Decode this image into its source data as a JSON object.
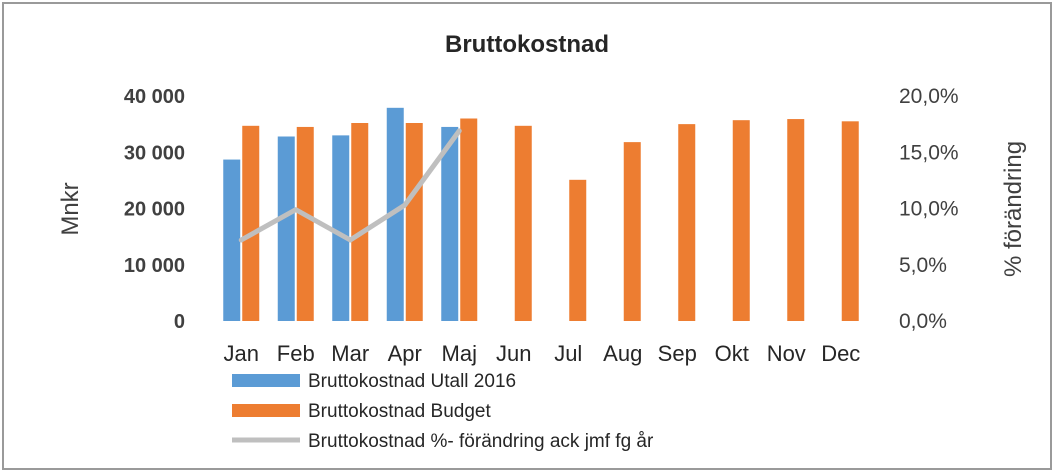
{
  "chart_data": {
    "type": "bar",
    "title": "Bruttokostnad",
    "ylabel": "Mnkr",
    "y2label": "% förändring",
    "categories": [
      "Jan",
      "Feb",
      "Mar",
      "Apr",
      "Maj",
      "Jun",
      "Jul",
      "Aug",
      "Sep",
      "Okt",
      "Nov",
      "Dec"
    ],
    "ylim": [
      0,
      40000
    ],
    "y2lim": [
      0,
      20
    ],
    "yticks": [
      "0",
      "10 000",
      "20 000",
      "30 000",
      "40 000"
    ],
    "y2ticks": [
      "0,0%",
      "5,0%",
      "10,0%",
      "15,0%",
      "20,0%"
    ],
    "grid": false,
    "legend_position": "bottom",
    "series": [
      {
        "name": "Bruttokostnad Utall 2016",
        "type": "bar",
        "axis": "left",
        "color": "#5b9bd5",
        "values": [
          28700,
          32800,
          33000,
          37900,
          34500,
          null,
          null,
          null,
          null,
          null,
          null,
          null
        ]
      },
      {
        "name": "Bruttokostnad Budget",
        "type": "bar",
        "axis": "left",
        "color": "#ed7d31",
        "values": [
          34700,
          34500,
          35200,
          35200,
          36000,
          34700,
          25100,
          31800,
          35000,
          35700,
          35900,
          35500
        ]
      },
      {
        "name": "Bruttokostnad %- förändring ack jmf fg år",
        "type": "line",
        "axis": "right",
        "color": "#bfbfbf",
        "values": [
          7.2,
          9.9,
          7.2,
          10.3,
          16.9,
          null,
          null,
          null,
          null,
          null,
          null,
          null
        ]
      }
    ]
  }
}
